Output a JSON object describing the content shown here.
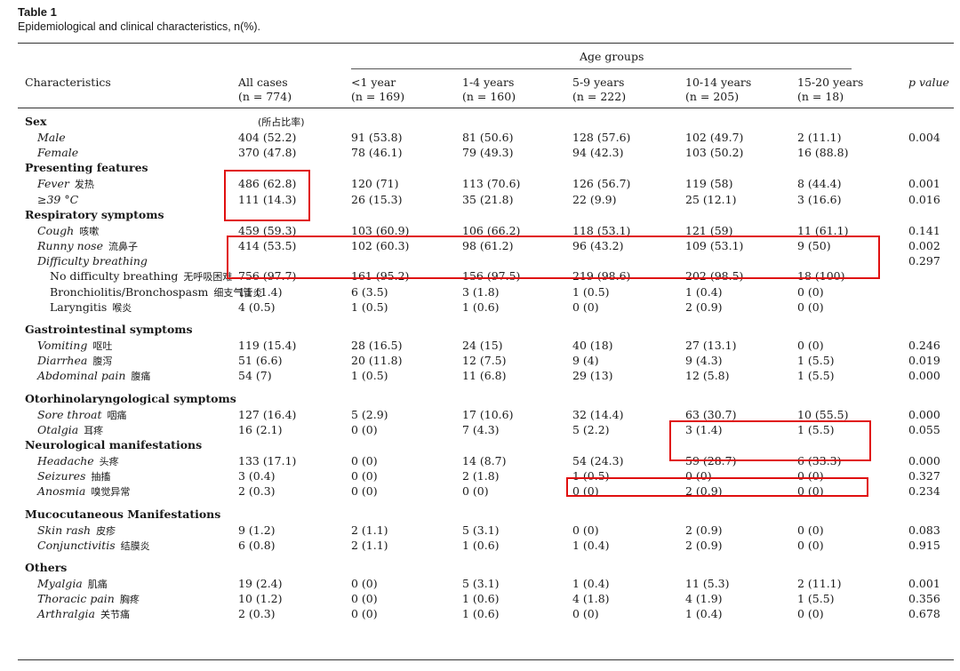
{
  "title": "Table 1",
  "subtitle": "Epidemiological and clinical characteristics, n(%).",
  "header": {
    "age_groups": "Age groups",
    "characteristics": "Characteristics",
    "columns": [
      {
        "label": "All cases",
        "n": "(n = 774)"
      },
      {
        "label": "<1 year",
        "n": "(n = 169)"
      },
      {
        "label": "1-4 years",
        "n": "(n = 160)"
      },
      {
        "label": "5-9 years",
        "n": "(n = 222)"
      },
      {
        "label": "10-14 years",
        "n": "(n = 205)"
      },
      {
        "label": "15-20 years",
        "n": "(n = 18)"
      }
    ],
    "p_value": "p value"
  },
  "sex_note": "(所占比率)",
  "rows": [
    {
      "type": "section",
      "label": "Sex"
    },
    {
      "type": "item",
      "label": "Male",
      "vals": [
        "404 (52.2)",
        "91 (53.8)",
        "81 (50.6)",
        "128 (57.6)",
        "102 (49.7)",
        "2 (11.1)"
      ],
      "p": "0.004"
    },
    {
      "type": "item",
      "label": "Female",
      "vals": [
        "370 (47.8)",
        "78 (46.1)",
        "79 (49.3)",
        "94 (42.3)",
        "103 (50.2)",
        "16 (88.8)"
      ],
      "p": ""
    },
    {
      "type": "section",
      "label": "Presenting features"
    },
    {
      "type": "item",
      "label": "Fever",
      "note": "发热",
      "vals": [
        "486 (62.8)",
        "120 (71)",
        "113 (70.6)",
        "126 (56.7)",
        "119 (58)",
        "8 (44.4)"
      ],
      "p": "0.001"
    },
    {
      "type": "item",
      "label": "≥39 °C",
      "vals": [
        "111 (14.3)",
        "26 (15.3)",
        "35 (21.8)",
        "22 (9.9)",
        "25 (12.1)",
        "3 (16.6)"
      ],
      "p": "0.016"
    },
    {
      "type": "section",
      "label": "Respiratory symptoms"
    },
    {
      "type": "item",
      "label": "Cough",
      "note": "咳嗽",
      "vals": [
        "459 (59.3)",
        "103 (60.9)",
        "106 (66.2)",
        "118 (53.1)",
        "121 (59)",
        "11 (61.1)"
      ],
      "p": "0.141"
    },
    {
      "type": "item",
      "label": "Runny nose",
      "note": "流鼻子",
      "vals": [
        "414 (53.5)",
        "102 (60.3)",
        "98 (61.2)",
        "96 (43.2)",
        "109 (53.1)",
        "9 (50)"
      ],
      "p": "0.002"
    },
    {
      "type": "item",
      "label": "Difficulty breathing",
      "vals": [
        "",
        "",
        "",
        "",
        "",
        ""
      ],
      "p": "0.297"
    },
    {
      "type": "sub",
      "label": "No difficulty breathing",
      "note": "无呼吸困难",
      "vals": [
        "756 (97.7)",
        "161 (95.2)",
        "156 (97.5)",
        "219 (98.6)",
        "202 (98.5)",
        "18 (100)"
      ],
      "p": ""
    },
    {
      "type": "sub",
      "label": "Bronchiolitis/Bronchospasm",
      "note": "细支气管炎",
      "vals": [
        "11 (1.4)",
        "6 (3.5)",
        "3 (1.8)",
        "1 (0.5)",
        "1 (0.4)",
        "0 (0)"
      ],
      "p": ""
    },
    {
      "type": "sub",
      "label": "Laryngitis",
      "note": "喉炎",
      "vals": [
        "4 (0.5)",
        "1 (0.5)",
        "1 (0.6)",
        "0 (0)",
        "2 (0.9)",
        "0 (0)"
      ],
      "p": ""
    },
    {
      "type": "gap"
    },
    {
      "type": "section",
      "label": "Gastrointestinal symptoms"
    },
    {
      "type": "item",
      "label": "Vomiting",
      "note": "呕吐",
      "vals": [
        "119 (15.4)",
        "28 (16.5)",
        "24 (15)",
        "40 (18)",
        "27 (13.1)",
        "0 (0)"
      ],
      "p": "0.246"
    },
    {
      "type": "item",
      "label": "Diarrhea",
      "note": "腹泻",
      "vals": [
        "51 (6.6)",
        "20 (11.8)",
        "12 (7.5)",
        "9 (4)",
        "9 (4.3)",
        "1 (5.5)"
      ],
      "p": "0.019"
    },
    {
      "type": "item",
      "label": "Abdominal pain",
      "note": "腹痛",
      "vals": [
        "54 (7)",
        "1 (0.5)",
        "11 (6.8)",
        "29 (13)",
        "12 (5.8)",
        "1 (5.5)"
      ],
      "p": "0.000"
    },
    {
      "type": "gap"
    },
    {
      "type": "section",
      "label": "Otorhinolaryngological symptoms"
    },
    {
      "type": "item",
      "label": "Sore throat",
      "note": "咽痛",
      "vals": [
        "127 (16.4)",
        "5 (2.9)",
        "17 (10.6)",
        "32 (14.4)",
        "63 (30.7)",
        "10 (55.5)"
      ],
      "p": "0.000"
    },
    {
      "type": "item",
      "label": "Otalgia",
      "note": "耳疼",
      "vals": [
        "16 (2.1)",
        "0 (0)",
        "7 (4.3)",
        "5 (2.2)",
        "3 (1.4)",
        "1 (5.5)"
      ],
      "p": "0.055"
    },
    {
      "type": "section",
      "label": "Neurological manifestations"
    },
    {
      "type": "item",
      "label": "Headache",
      "note": "头疼",
      "vals": [
        "133 (17.1)",
        "0 (0)",
        "14 (8.7)",
        "54 (24.3)",
        "59 (28.7)",
        "6 (33.3)"
      ],
      "p": "0.000"
    },
    {
      "type": "item",
      "label": "Seizures",
      "note": "抽搐",
      "vals": [
        "3 (0.4)",
        "0 (0)",
        "2 (1.8)",
        "1 (0.5)",
        "0 (0)",
        "0 (0)"
      ],
      "p": "0.327"
    },
    {
      "type": "item",
      "label": "Anosmia",
      "note": "嗅觉异常",
      "vals": [
        "2 (0.3)",
        "0 (0)",
        "0 (0)",
        "0 (0)",
        "2 (0.9)",
        "0 (0)"
      ],
      "p": "0.234"
    },
    {
      "type": "gap"
    },
    {
      "type": "section",
      "label": "Mucocutaneous Manifestations"
    },
    {
      "type": "item",
      "label": "Skin rash",
      "note": "皮疹",
      "vals": [
        "9 (1.2)",
        "2 (1.1)",
        "5 (3.1)",
        "0 (0)",
        "2 (0.9)",
        "0 (0)"
      ],
      "p": "0.083"
    },
    {
      "type": "item",
      "label": "Conjunctivitis",
      "note": "结膜炎",
      "vals": [
        "6 (0.8)",
        "2 (1.1)",
        "1 (0.6)",
        "1 (0.4)",
        "2 (0.9)",
        "0 (0)"
      ],
      "p": "0.915"
    },
    {
      "type": "gap"
    },
    {
      "type": "section",
      "label": "Others"
    },
    {
      "type": "item",
      "label": "Myalgia",
      "note": "肌痛",
      "vals": [
        "19 (2.4)",
        "0 (0)",
        "5 (3.1)",
        "1 (0.4)",
        "11 (5.3)",
        "2 (11.1)"
      ],
      "p": "0.001"
    },
    {
      "type": "item",
      "label": "Thoracic pain",
      "note": "胸疼",
      "vals": [
        "10 (1.2)",
        "0 (0)",
        "1 (0.6)",
        "4 (1.8)",
        "4 (1.9)",
        "1 (5.5)"
      ],
      "p": "0.356"
    },
    {
      "type": "item",
      "label": "Arthralgia",
      "note": "关节痛",
      "vals": [
        "2 (0.3)",
        "0 (0)",
        "1 (0.6)",
        "0 (0)",
        "1 (0.4)",
        "0 (0)"
      ],
      "p": "0.678"
    }
  ],
  "highlight_color": "#e01010"
}
